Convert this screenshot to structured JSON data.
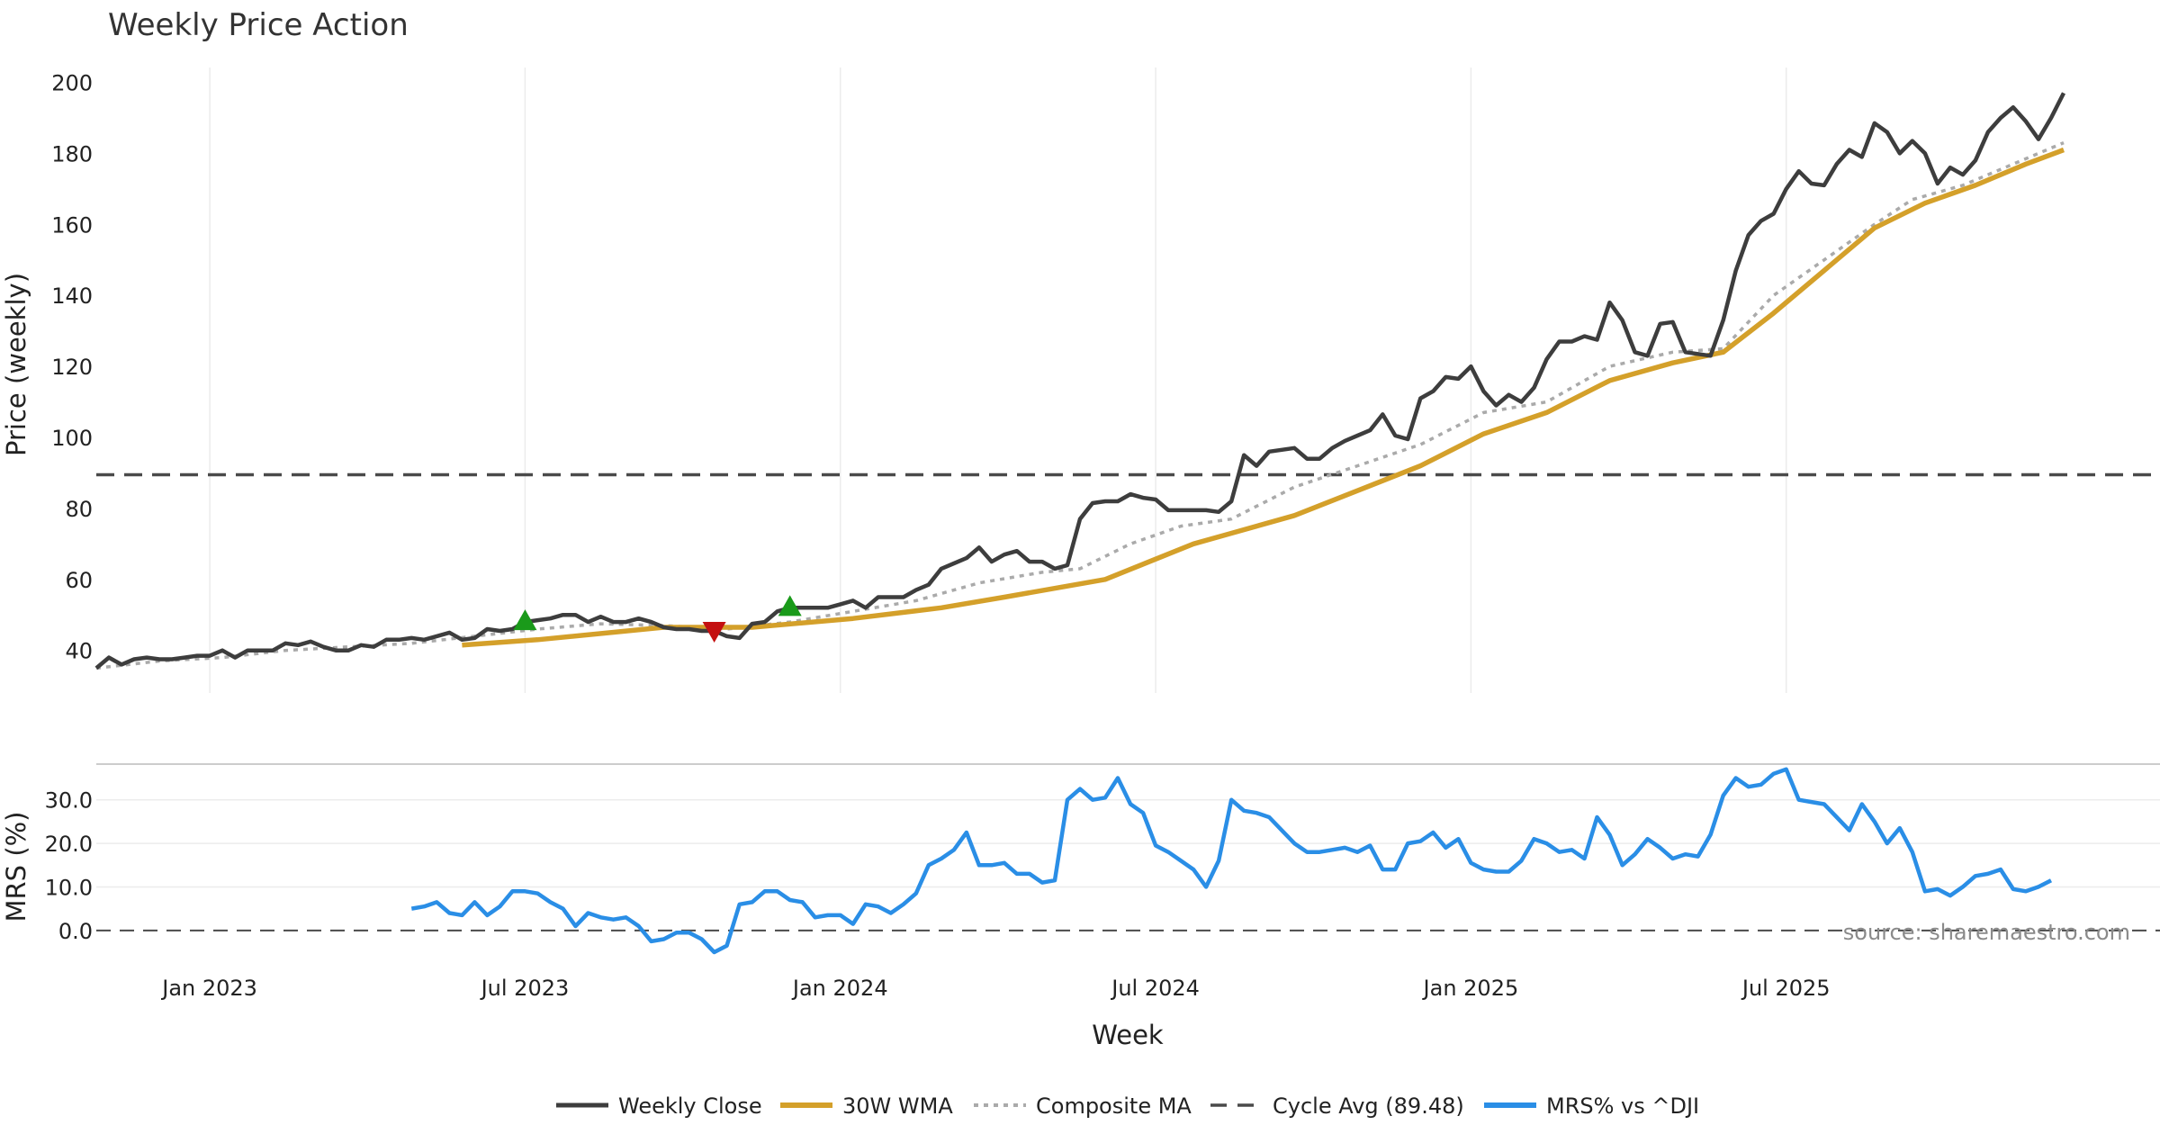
{
  "chart_data": [
    {
      "type": "line",
      "title": "Weekly Price Action",
      "xlabel": "",
      "ylabel": "Price (weekly)",
      "ylim": [
        28,
        208
      ],
      "yticks": [
        40,
        60,
        80,
        100,
        120,
        140,
        160,
        180,
        200
      ],
      "cycle_avg": 89.48,
      "x_start_week": 0,
      "x_end_week": 148,
      "weekly_close_anchors": [
        [
          0,
          35
        ],
        [
          1,
          38
        ],
        [
          2,
          36
        ],
        [
          3,
          37.5
        ],
        [
          4,
          38
        ],
        [
          5,
          37.5
        ],
        [
          6,
          37.5
        ],
        [
          7,
          38
        ],
        [
          8,
          38.5
        ],
        [
          9,
          38.5
        ],
        [
          10,
          40
        ],
        [
          11,
          38
        ],
        [
          12,
          40
        ],
        [
          13,
          40
        ],
        [
          14,
          40
        ],
        [
          15,
          42
        ],
        [
          16,
          41.5
        ],
        [
          17,
          42.5
        ],
        [
          18,
          41
        ],
        [
          19,
          40
        ],
        [
          20,
          40
        ],
        [
          21,
          41.5
        ],
        [
          22,
          41
        ],
        [
          23,
          43
        ],
        [
          24,
          43
        ],
        [
          25,
          43.5
        ],
        [
          26,
          43
        ],
        [
          27,
          44
        ],
        [
          28,
          45
        ],
        [
          29,
          43
        ],
        [
          30,
          43.5
        ],
        [
          31,
          46
        ],
        [
          32,
          45.5
        ],
        [
          33,
          46
        ],
        [
          34,
          48
        ],
        [
          35,
          48.5
        ],
        [
          36,
          49
        ],
        [
          37,
          50
        ],
        [
          38,
          50
        ],
        [
          39,
          48
        ],
        [
          40,
          49.5
        ],
        [
          41,
          48
        ],
        [
          42,
          48
        ],
        [
          43,
          49
        ],
        [
          44,
          48
        ],
        [
          45,
          46.5
        ],
        [
          46,
          46
        ],
        [
          47,
          46
        ],
        [
          48,
          45.5
        ],
        [
          49,
          45.5
        ],
        [
          50,
          44
        ],
        [
          51,
          43.5
        ],
        [
          52,
          47.5
        ],
        [
          53,
          48
        ],
        [
          54,
          51
        ],
        [
          55,
          52
        ],
        [
          56,
          52
        ],
        [
          57,
          52
        ],
        [
          58,
          52
        ],
        [
          59,
          53
        ],
        [
          60,
          54
        ],
        [
          61,
          52
        ],
        [
          62,
          55
        ],
        [
          63,
          55
        ],
        [
          64,
          55
        ],
        [
          65,
          57
        ],
        [
          66,
          58.5
        ],
        [
          67,
          63
        ],
        [
          68,
          64.5
        ],
        [
          69,
          66
        ],
        [
          70,
          69
        ],
        [
          71,
          65
        ],
        [
          72,
          67
        ],
        [
          73,
          68
        ],
        [
          74,
          65
        ],
        [
          75,
          65
        ],
        [
          76,
          63
        ],
        [
          77,
          64
        ],
        [
          78,
          77
        ],
        [
          79,
          81.5
        ],
        [
          80,
          82
        ],
        [
          81,
          82
        ],
        [
          82,
          84
        ],
        [
          83,
          83
        ],
        [
          84,
          82.5
        ],
        [
          85,
          79.5
        ],
        [
          86,
          79.5
        ],
        [
          87,
          79.5
        ],
        [
          88,
          79.5
        ],
        [
          89,
          79
        ],
        [
          90,
          82
        ],
        [
          91,
          95
        ],
        [
          92,
          92
        ],
        [
          93,
          96
        ],
        [
          94,
          96.5
        ],
        [
          95,
          97
        ],
        [
          96,
          94
        ],
        [
          97,
          94
        ],
        [
          98,
          97
        ],
        [
          99,
          99
        ],
        [
          100,
          100.5
        ],
        [
          101,
          102
        ],
        [
          102,
          106.5
        ],
        [
          103,
          100.5
        ],
        [
          104,
          99.5
        ],
        [
          105,
          111
        ],
        [
          106,
          113
        ],
        [
          107,
          117
        ],
        [
          108,
          116.5
        ],
        [
          109,
          120
        ],
        [
          110,
          113
        ],
        [
          111,
          109
        ],
        [
          112,
          112
        ],
        [
          113,
          110
        ],
        [
          114,
          114
        ],
        [
          115,
          122
        ],
        [
          116,
          127
        ],
        [
          117,
          127
        ],
        [
          118,
          128.5
        ],
        [
          119,
          127.5
        ],
        [
          120,
          138
        ],
        [
          121,
          133
        ],
        [
          122,
          124
        ],
        [
          123,
          123
        ],
        [
          124,
          132
        ],
        [
          125,
          132.5
        ],
        [
          126,
          124
        ],
        [
          127,
          123.5
        ],
        [
          128,
          123
        ],
        [
          129,
          133
        ],
        [
          130,
          147
        ],
        [
          131,
          157
        ],
        [
          132,
          161
        ],
        [
          133,
          163
        ],
        [
          134,
          170
        ],
        [
          135,
          175
        ],
        [
          136,
          171.5
        ],
        [
          137,
          171
        ],
        [
          138,
          177
        ],
        [
          139,
          181
        ],
        [
          140,
          179
        ],
        [
          141,
          188.5
        ],
        [
          142,
          186
        ],
        [
          143,
          180
        ],
        [
          144,
          183.5
        ],
        [
          145,
          180
        ],
        [
          146,
          171.5
        ],
        [
          147,
          176
        ],
        [
          148,
          174
        ],
        [
          149,
          178
        ],
        [
          150,
          186
        ],
        [
          151,
          190
        ],
        [
          152,
          193
        ],
        [
          153,
          189
        ],
        [
          154,
          184
        ],
        [
          155,
          190
        ],
        [
          156,
          197
        ]
      ],
      "wma_anchors": [
        [
          29,
          41.5
        ],
        [
          35,
          43
        ],
        [
          45,
          46.5
        ],
        [
          52,
          46.5
        ],
        [
          60,
          49
        ],
        [
          67,
          52
        ],
        [
          72,
          55
        ],
        [
          80,
          60
        ],
        [
          87,
          70
        ],
        [
          90,
          73
        ],
        [
          95,
          78
        ],
        [
          100,
          85
        ],
        [
          105,
          92
        ],
        [
          110,
          101
        ],
        [
          115,
          107
        ],
        [
          120,
          116
        ],
        [
          125,
          121
        ],
        [
          129,
          124
        ],
        [
          133,
          135
        ],
        [
          137,
          147
        ],
        [
          141,
          159
        ],
        [
          145,
          166
        ],
        [
          149,
          171
        ],
        [
          153,
          177
        ],
        [
          156,
          181
        ]
      ],
      "composite_anchors": [
        [
          0,
          35
        ],
        [
          5,
          37
        ],
        [
          10,
          38
        ],
        [
          15,
          40
        ],
        [
          20,
          41
        ],
        [
          25,
          42
        ],
        [
          30,
          44
        ],
        [
          35,
          46
        ],
        [
          40,
          47.5
        ],
        [
          45,
          47
        ],
        [
          50,
          46
        ],
        [
          55,
          48
        ],
        [
          60,
          51
        ],
        [
          65,
          54
        ],
        [
          70,
          59
        ],
        [
          75,
          62
        ],
        [
          78,
          63
        ],
        [
          82,
          70
        ],
        [
          86,
          75
        ],
        [
          90,
          77
        ],
        [
          95,
          86
        ],
        [
          100,
          92
        ],
        [
          105,
          98
        ],
        [
          110,
          107
        ],
        [
          115,
          110
        ],
        [
          120,
          120
        ],
        [
          125,
          124
        ],
        [
          129,
          125
        ],
        [
          133,
          140
        ],
        [
          137,
          150
        ],
        [
          141,
          160
        ],
        [
          144,
          167
        ],
        [
          148,
          171
        ],
        [
          152,
          177
        ],
        [
          156,
          183
        ]
      ],
      "buy_signal_weeks": [
        34,
        55
      ],
      "sell_signal_weeks": [
        49
      ],
      "x_gridline_weeks": [
        9,
        34,
        59,
        84,
        109,
        134
      ]
    },
    {
      "type": "line",
      "title": "",
      "xlabel": "Week",
      "ylabel": "MRS (%)",
      "ylim": [
        -5,
        38
      ],
      "yticks": [
        0.0,
        10.0,
        20.0,
        30.0
      ],
      "ytick_labels": [
        "0.0",
        "10.0",
        "20.0",
        "30.0"
      ],
      "xtick_labels": [
        "Jan 2023",
        "Jul 2023",
        "Jan 2024",
        "Jul 2024",
        "Jan 2025",
        "Jul 2025"
      ],
      "xtick_weeks": [
        9,
        34,
        59,
        84,
        109,
        134
      ],
      "mrs_anchors": [
        [
          25,
          5
        ],
        [
          26,
          5.5
        ],
        [
          27,
          6.5
        ],
        [
          28,
          4
        ],
        [
          29,
          3.5
        ],
        [
          30,
          6.5
        ],
        [
          31,
          3.5
        ],
        [
          32,
          5.5
        ],
        [
          33,
          9
        ],
        [
          34,
          9
        ],
        [
          35,
          8.5
        ],
        [
          36,
          6.5
        ],
        [
          37,
          5
        ],
        [
          38,
          1
        ],
        [
          39,
          4
        ],
        [
          40,
          3
        ],
        [
          41,
          2.5
        ],
        [
          42,
          3
        ],
        [
          43,
          1
        ],
        [
          44,
          -2.5
        ],
        [
          45,
          -2
        ],
        [
          46,
          -0.5
        ],
        [
          47,
          -0.5
        ],
        [
          48,
          -2
        ],
        [
          49,
          -5
        ],
        [
          50,
          -3.5
        ],
        [
          51,
          6
        ],
        [
          52,
          6.5
        ],
        [
          53,
          9
        ],
        [
          54,
          9
        ],
        [
          55,
          7
        ],
        [
          56,
          6.5
        ],
        [
          57,
          3
        ],
        [
          58,
          3.5
        ],
        [
          59,
          3.5
        ],
        [
          60,
          1.5
        ],
        [
          61,
          6
        ],
        [
          62,
          5.5
        ],
        [
          63,
          4
        ],
        [
          64,
          6
        ],
        [
          65,
          8.5
        ],
        [
          66,
          15
        ],
        [
          67,
          16.5
        ],
        [
          68,
          18.5
        ],
        [
          69,
          22.5
        ],
        [
          70,
          15
        ],
        [
          71,
          15
        ],
        [
          72,
          15.5
        ],
        [
          73,
          13
        ],
        [
          74,
          13
        ],
        [
          75,
          11
        ],
        [
          76,
          11.5
        ],
        [
          77,
          30
        ],
        [
          78,
          32.5
        ],
        [
          79,
          30
        ],
        [
          80,
          30.5
        ],
        [
          81,
          35
        ],
        [
          82,
          29
        ],
        [
          83,
          27
        ],
        [
          84,
          19.5
        ],
        [
          85,
          18
        ],
        [
          86,
          16
        ],
        [
          87,
          14
        ],
        [
          88,
          10
        ],
        [
          89,
          16
        ],
        [
          90,
          30
        ],
        [
          91,
          27.5
        ],
        [
          92,
          27
        ],
        [
          93,
          26
        ],
        [
          94,
          23
        ],
        [
          95,
          20
        ],
        [
          96,
          18
        ],
        [
          97,
          18
        ],
        [
          98,
          18.5
        ],
        [
          99,
          19
        ],
        [
          100,
          18
        ],
        [
          101,
          19.5
        ],
        [
          102,
          14
        ],
        [
          103,
          14
        ],
        [
          104,
          20
        ],
        [
          105,
          20.5
        ],
        [
          106,
          22.5
        ],
        [
          107,
          19
        ],
        [
          108,
          21
        ],
        [
          109,
          15.5
        ],
        [
          110,
          14
        ],
        [
          111,
          13.5
        ],
        [
          112,
          13.5
        ],
        [
          113,
          16
        ],
        [
          114,
          21
        ],
        [
          115,
          20
        ],
        [
          116,
          18
        ],
        [
          117,
          18.5
        ],
        [
          118,
          16.5
        ],
        [
          119,
          26
        ],
        [
          120,
          22
        ],
        [
          121,
          15
        ],
        [
          122,
          17.5
        ],
        [
          123,
          21
        ],
        [
          124,
          19
        ],
        [
          125,
          16.5
        ],
        [
          126,
          17.5
        ],
        [
          127,
          17
        ],
        [
          128,
          22
        ],
        [
          129,
          31
        ],
        [
          130,
          35
        ],
        [
          131,
          33
        ],
        [
          132,
          33.5
        ],
        [
          133,
          36
        ],
        [
          134,
          37
        ],
        [
          135,
          30
        ],
        [
          136,
          29.5
        ],
        [
          137,
          29
        ],
        [
          138,
          26
        ],
        [
          139,
          23
        ],
        [
          140,
          29
        ],
        [
          141,
          25
        ],
        [
          142,
          20
        ],
        [
          143,
          23.5
        ],
        [
          144,
          18
        ],
        [
          145,
          9
        ],
        [
          146,
          9.5
        ],
        [
          147,
          8
        ],
        [
          148,
          10
        ],
        [
          149,
          12.5
        ],
        [
          150,
          13
        ],
        [
          151,
          14
        ],
        [
          152,
          9.5
        ],
        [
          153,
          9
        ],
        [
          154,
          10
        ],
        [
          155,
          11.5
        ]
      ],
      "zero_line": 0
    }
  ],
  "legend": [
    {
      "label": "Weekly Close",
      "style": "solid-dark"
    },
    {
      "label": "30W WMA",
      "style": "solid-gold"
    },
    {
      "label": "Composite MA",
      "style": "dotted-grey"
    },
    {
      "label": "Cycle Avg (89.48)",
      "style": "dashed-dark"
    },
    {
      "label": "MRS% vs ^DJI",
      "style": "solid-blue"
    }
  ],
  "source": "source: sharemaestro.com",
  "colors": {
    "close": "#3d3d3d",
    "wma": "#d4a02a",
    "composite": "#aaaaaa",
    "cycle": "#4a4a4a",
    "mrs": "#2a8ee6",
    "buy": "#1a9a1a",
    "sell": "#c41010",
    "grid": "#ececec"
  }
}
